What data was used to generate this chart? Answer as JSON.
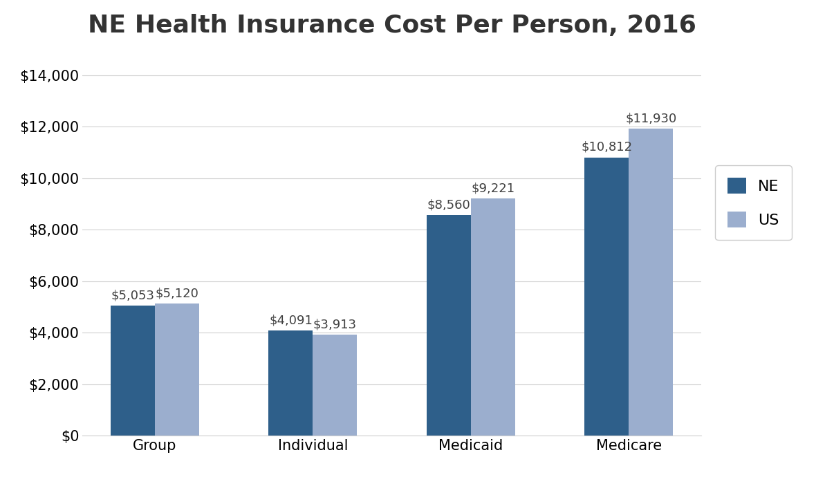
{
  "title": "NE Health Insurance Cost Per Person, 2016",
  "categories": [
    "Group",
    "Individual",
    "Medicaid",
    "Medicare"
  ],
  "ne_values": [
    5053,
    4091,
    8560,
    10812
  ],
  "us_values": [
    5120,
    3913,
    9221,
    11930
  ],
  "ne_color": "#2E5F8A",
  "us_color": "#9BAECE",
  "ylim": [
    0,
    15000
  ],
  "yticks": [
    0,
    2000,
    4000,
    6000,
    8000,
    10000,
    12000,
    14000
  ],
  "legend_labels": [
    "NE",
    "US"
  ],
  "bar_width": 0.28,
  "title_fontsize": 26,
  "tick_fontsize": 15,
  "annotation_fontsize": 13,
  "legend_fontsize": 16,
  "background_color": "#ffffff",
  "grid_color": "#d0d0d0"
}
